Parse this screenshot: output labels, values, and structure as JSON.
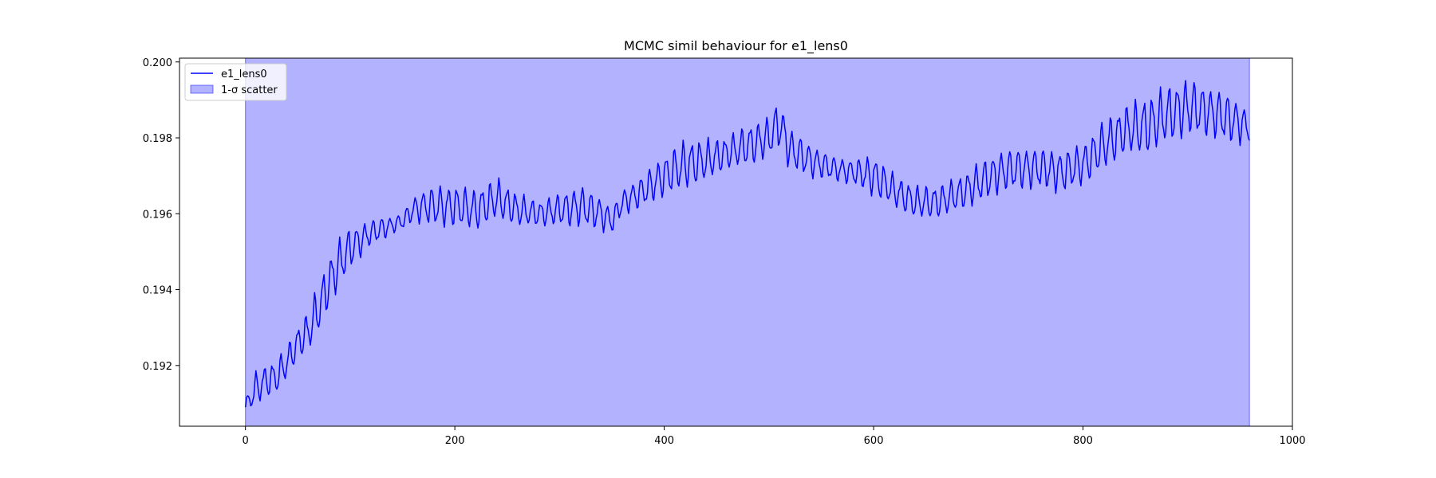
{
  "chart_data": {
    "type": "line",
    "title": "MCMC simil behaviour for e1_lens0",
    "xlabel": "",
    "ylabel": "",
    "xlim": [
      -63,
      1000
    ],
    "ylim": [
      0.1904,
      0.2001
    ],
    "xticks": [
      0,
      200,
      400,
      600,
      800,
      1000
    ],
    "yticks": [
      0.192,
      0.194,
      0.196,
      0.198,
      0.2
    ],
    "grid": false,
    "legend_position": "upper-left",
    "series": [
      {
        "name": "e1_lens0",
        "kind": "line",
        "color": "#0000ff",
        "n_points": 960,
        "oscillation_period": 8,
        "x": [
          0,
          10,
          20,
          30,
          40,
          50,
          60,
          70,
          80,
          90,
          100,
          110,
          120,
          130,
          140,
          150,
          160,
          170,
          180,
          200,
          220,
          240,
          260,
          280,
          300,
          320,
          340,
          350,
          360,
          380,
          400,
          420,
          440,
          460,
          480,
          500,
          510,
          520,
          540,
          560,
          580,
          600,
          620,
          640,
          660,
          680,
          700,
          720,
          740,
          760,
          780,
          800,
          820,
          840,
          860,
          880,
          900,
          920,
          940,
          958
        ],
        "y": [
          0.1909,
          0.1914,
          0.1916,
          0.1917,
          0.1921,
          0.1926,
          0.1929,
          0.1935,
          0.1942,
          0.1947,
          0.1951,
          0.1953,
          0.1955,
          0.1956,
          0.1957,
          0.1958,
          0.1961,
          0.1962,
          0.1962,
          0.1962,
          0.1961,
          0.1964,
          0.1961,
          0.196,
          0.1961,
          0.1962,
          0.196,
          0.1958,
          0.1963,
          0.1966,
          0.197,
          0.1973,
          0.1974,
          0.1976,
          0.1978,
          0.198,
          0.1984,
          0.1977,
          0.1974,
          0.1972,
          0.1971,
          0.197,
          0.1966,
          0.1963,
          0.1963,
          0.1965,
          0.1968,
          0.1971,
          0.1972,
          0.1972,
          0.1971,
          0.1973,
          0.1978,
          0.1982,
          0.1983,
          0.1986,
          0.1988,
          0.1987,
          0.1985,
          0.1983
        ],
        "amplitude": [
          0.0002,
          0.0004,
          0.0004,
          0.0004,
          0.0004,
          0.0004,
          0.0005,
          0.0006,
          0.0006,
          0.0006,
          0.0005,
          0.0004,
          0.0003,
          0.0003,
          0.0002,
          0.0002,
          0.0003,
          0.0004,
          0.0005,
          0.0005,
          0.0005,
          0.0005,
          0.0004,
          0.0003,
          0.0004,
          0.0005,
          0.0004,
          0.0003,
          0.0003,
          0.0004,
          0.0005,
          0.0006,
          0.0005,
          0.0004,
          0.0005,
          0.0005,
          0.0006,
          0.0005,
          0.0004,
          0.0003,
          0.0003,
          0.0005,
          0.0004,
          0.0004,
          0.0004,
          0.0004,
          0.0005,
          0.0005,
          0.0005,
          0.0005,
          0.0005,
          0.0005,
          0.0006,
          0.0006,
          0.0007,
          0.0007,
          0.0007,
          0.0006,
          0.0006,
          0.0004
        ]
      },
      {
        "name": "1-σ scatter",
        "kind": "area",
        "color": "#0000ff",
        "alpha": 0.3,
        "x": [
          0,
          959
        ],
        "y_lower": [
          0.1904,
          0.1904
        ],
        "y_upper": [
          0.2001,
          0.2001
        ]
      }
    ]
  }
}
